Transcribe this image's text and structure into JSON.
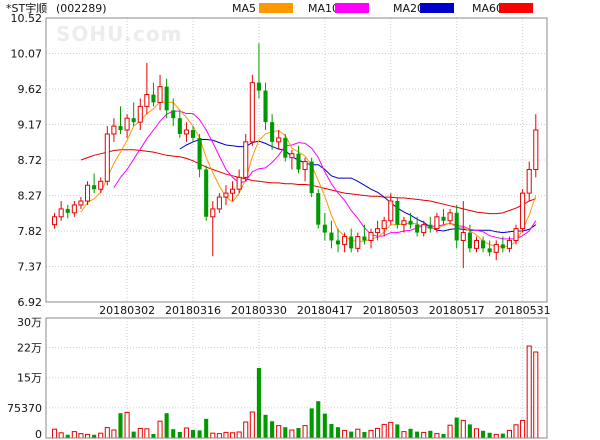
{
  "chart_data": {
    "type": "candlestick",
    "title": "*ST宇顺",
    "code": "(002289)",
    "watermark": "SOHU.com",
    "legend": [
      {
        "label": "MA5",
        "color": "#ff9900"
      },
      {
        "label": "MA10",
        "color": "#ff00ff"
      },
      {
        "label": "MA20",
        "color": "#0000cc"
      },
      {
        "label": "MA60",
        "color": "#ff0000"
      }
    ],
    "price_axis": {
      "ticks": [
        "10.52",
        "10.07",
        "9.62",
        "9.17",
        "8.72",
        "8.27",
        "7.82",
        "7.37",
        "6.92"
      ],
      "min": 6.92,
      "max": 10.52
    },
    "date_labels": [
      "20180302",
      "20180316",
      "20180330",
      "20180417",
      "20180503",
      "20180517",
      "20180531"
    ],
    "date_label_index": [
      11,
      21,
      31,
      41,
      51,
      61,
      71
    ],
    "volume_axis": {
      "ticks": [
        "30万",
        "22万",
        "15万",
        "75370",
        "0"
      ],
      "tick_values": [
        300000,
        226110,
        150740,
        75370,
        0
      ],
      "max": 300000
    },
    "candles": [
      {
        "o": 7.9,
        "h": 8.05,
        "l": 7.85,
        "c": 8.0,
        "up": true
      },
      {
        "o": 8.0,
        "h": 8.2,
        "l": 7.95,
        "c": 8.1,
        "up": true
      },
      {
        "o": 8.1,
        "h": 8.15,
        "l": 7.98,
        "c": 8.05,
        "up": false
      },
      {
        "o": 8.05,
        "h": 8.2,
        "l": 8.0,
        "c": 8.15,
        "up": true
      },
      {
        "o": 8.15,
        "h": 8.25,
        "l": 8.1,
        "c": 8.2,
        "up": true
      },
      {
        "o": 8.2,
        "h": 8.45,
        "l": 8.15,
        "c": 8.4,
        "up": true
      },
      {
        "o": 8.4,
        "h": 8.55,
        "l": 8.3,
        "c": 8.35,
        "up": false
      },
      {
        "o": 8.35,
        "h": 8.5,
        "l": 8.3,
        "c": 8.45,
        "up": true
      },
      {
        "o": 8.45,
        "h": 9.15,
        "l": 8.4,
        "c": 9.05,
        "up": true
      },
      {
        "o": 9.05,
        "h": 9.25,
        "l": 8.95,
        "c": 9.15,
        "up": true
      },
      {
        "o": 9.15,
        "h": 9.4,
        "l": 9.05,
        "c": 9.1,
        "up": false
      },
      {
        "o": 9.1,
        "h": 9.3,
        "l": 9.0,
        "c": 9.25,
        "up": true
      },
      {
        "o": 9.25,
        "h": 9.45,
        "l": 9.15,
        "c": 9.2,
        "up": false
      },
      {
        "o": 9.2,
        "h": 9.5,
        "l": 9.1,
        "c": 9.4,
        "up": true
      },
      {
        "o": 9.4,
        "h": 9.95,
        "l": 9.3,
        "c": 9.55,
        "up": true
      },
      {
        "o": 9.55,
        "h": 9.7,
        "l": 9.4,
        "c": 9.45,
        "up": false
      },
      {
        "o": 9.45,
        "h": 9.8,
        "l": 9.35,
        "c": 9.65,
        "up": true
      },
      {
        "o": 9.65,
        "h": 9.75,
        "l": 9.25,
        "c": 9.35,
        "up": false
      },
      {
        "o": 9.35,
        "h": 9.5,
        "l": 9.15,
        "c": 9.25,
        "up": false
      },
      {
        "o": 9.25,
        "h": 9.35,
        "l": 9.0,
        "c": 9.05,
        "up": false
      },
      {
        "o": 9.05,
        "h": 9.2,
        "l": 8.95,
        "c": 9.1,
        "up": true
      },
      {
        "o": 9.1,
        "h": 9.15,
        "l": 8.95,
        "c": 9.0,
        "up": false
      },
      {
        "o": 9.0,
        "h": 9.05,
        "l": 8.5,
        "c": 8.6,
        "up": false
      },
      {
        "o": 8.6,
        "h": 8.65,
        "l": 7.95,
        "c": 8.0,
        "up": false
      },
      {
        "o": 8.0,
        "h": 8.2,
        "l": 7.5,
        "c": 8.1,
        "up": true
      },
      {
        "o": 8.1,
        "h": 8.3,
        "l": 8.05,
        "c": 8.25,
        "up": true
      },
      {
        "o": 8.25,
        "h": 8.4,
        "l": 8.15,
        "c": 8.3,
        "up": true
      },
      {
        "o": 8.3,
        "h": 8.45,
        "l": 8.2,
        "c": 8.35,
        "up": true
      },
      {
        "o": 8.35,
        "h": 8.6,
        "l": 8.3,
        "c": 8.5,
        "up": true
      },
      {
        "o": 8.5,
        "h": 9.05,
        "l": 8.45,
        "c": 8.95,
        "up": true
      },
      {
        "o": 8.95,
        "h": 9.8,
        "l": 8.9,
        "c": 9.7,
        "up": true
      },
      {
        "o": 9.7,
        "h": 10.2,
        "l": 9.5,
        "c": 9.6,
        "up": false
      },
      {
        "o": 9.6,
        "h": 9.7,
        "l": 9.1,
        "c": 9.2,
        "up": false
      },
      {
        "o": 9.2,
        "h": 9.3,
        "l": 8.85,
        "c": 8.95,
        "up": false
      },
      {
        "o": 8.95,
        "h": 9.1,
        "l": 8.85,
        "c": 9.0,
        "up": true
      },
      {
        "o": 9.0,
        "h": 9.05,
        "l": 8.7,
        "c": 8.75,
        "up": false
      },
      {
        "o": 8.75,
        "h": 8.85,
        "l": 8.6,
        "c": 8.8,
        "up": true
      },
      {
        "o": 8.8,
        "h": 8.9,
        "l": 8.55,
        "c": 8.6,
        "up": false
      },
      {
        "o": 8.6,
        "h": 8.75,
        "l": 8.45,
        "c": 8.7,
        "up": true
      },
      {
        "o": 8.7,
        "h": 8.75,
        "l": 8.25,
        "c": 8.3,
        "up": false
      },
      {
        "o": 8.3,
        "h": 8.35,
        "l": 7.85,
        "c": 7.9,
        "up": false
      },
      {
        "o": 7.9,
        "h": 8.05,
        "l": 7.7,
        "c": 7.8,
        "up": false
      },
      {
        "o": 7.8,
        "h": 7.95,
        "l": 7.6,
        "c": 7.7,
        "up": false
      },
      {
        "o": 7.7,
        "h": 7.85,
        "l": 7.55,
        "c": 7.65,
        "up": false
      },
      {
        "o": 7.65,
        "h": 7.8,
        "l": 7.55,
        "c": 7.75,
        "up": true
      },
      {
        "o": 7.75,
        "h": 7.85,
        "l": 7.55,
        "c": 7.6,
        "up": false
      },
      {
        "o": 7.6,
        "h": 7.8,
        "l": 7.55,
        "c": 7.75,
        "up": true
      },
      {
        "o": 7.75,
        "h": 7.9,
        "l": 7.65,
        "c": 7.7,
        "up": false
      },
      {
        "o": 7.7,
        "h": 7.85,
        "l": 7.6,
        "c": 7.8,
        "up": true
      },
      {
        "o": 7.8,
        "h": 7.95,
        "l": 7.7,
        "c": 7.85,
        "up": true
      },
      {
        "o": 7.85,
        "h": 8.0,
        "l": 7.75,
        "c": 7.95,
        "up": true
      },
      {
        "o": 7.95,
        "h": 8.3,
        "l": 7.9,
        "c": 8.2,
        "up": true
      },
      {
        "o": 8.2,
        "h": 8.25,
        "l": 7.85,
        "c": 7.9,
        "up": false
      },
      {
        "o": 7.9,
        "h": 8.0,
        "l": 7.8,
        "c": 7.95,
        "up": true
      },
      {
        "o": 7.95,
        "h": 8.05,
        "l": 7.85,
        "c": 7.9,
        "up": false
      },
      {
        "o": 7.9,
        "h": 8.0,
        "l": 7.75,
        "c": 7.8,
        "up": false
      },
      {
        "o": 7.8,
        "h": 7.95,
        "l": 7.75,
        "c": 7.9,
        "up": true
      },
      {
        "o": 7.9,
        "h": 8.0,
        "l": 7.8,
        "c": 7.85,
        "up": false
      },
      {
        "o": 7.85,
        "h": 8.05,
        "l": 7.8,
        "c": 8.0,
        "up": true
      },
      {
        "o": 8.0,
        "h": 8.1,
        "l": 7.9,
        "c": 7.95,
        "up": false
      },
      {
        "o": 7.95,
        "h": 8.1,
        "l": 7.9,
        "c": 8.05,
        "up": true
      },
      {
        "o": 8.05,
        "h": 8.15,
        "l": 7.6,
        "c": 7.7,
        "up": false
      },
      {
        "o": 7.7,
        "h": 8.2,
        "l": 7.35,
        "c": 7.8,
        "up": true
      },
      {
        "o": 7.8,
        "h": 7.9,
        "l": 7.55,
        "c": 7.6,
        "up": false
      },
      {
        "o": 7.6,
        "h": 7.75,
        "l": 7.55,
        "c": 7.7,
        "up": true
      },
      {
        "o": 7.7,
        "h": 7.75,
        "l": 7.55,
        "c": 7.6,
        "up": false
      },
      {
        "o": 7.6,
        "h": 7.7,
        "l": 7.5,
        "c": 7.55,
        "up": false
      },
      {
        "o": 7.55,
        "h": 7.7,
        "l": 7.45,
        "c": 7.65,
        "up": true
      },
      {
        "o": 7.65,
        "h": 7.75,
        "l": 7.55,
        "c": 7.6,
        "up": false
      },
      {
        "o": 7.6,
        "h": 7.75,
        "l": 7.55,
        "c": 7.7,
        "up": true
      },
      {
        "o": 7.7,
        "h": 7.9,
        "l": 7.65,
        "c": 7.85,
        "up": true
      },
      {
        "o": 7.85,
        "h": 8.35,
        "l": 7.8,
        "c": 8.3,
        "up": true
      },
      {
        "o": 8.3,
        "h": 8.7,
        "l": 8.2,
        "c": 8.6,
        "up": true
      },
      {
        "o": 8.6,
        "h": 9.3,
        "l": 8.5,
        "c": 9.1,
        "up": true
      }
    ],
    "ma5": [
      null,
      null,
      null,
      null,
      8.06,
      8.18,
      8.23,
      8.31,
      8.49,
      8.68,
      8.82,
      8.97,
      9.15,
      9.22,
      9.31,
      9.37,
      9.46,
      9.45,
      9.45,
      9.35,
      9.26,
      9.15,
      9.0,
      8.75,
      8.56,
      8.39,
      8.25,
      8.19,
      8.3,
      8.47,
      8.76,
      8.97,
      9.05,
      9.08,
      9.09,
      9.03,
      8.87,
      8.82,
      8.77,
      8.65,
      8.46,
      8.26,
      8.02,
      7.83,
      7.76,
      7.7,
      7.69,
      7.69,
      7.72,
      7.74,
      7.81,
      7.9,
      7.9,
      7.91,
      7.92,
      7.91,
      7.87,
      7.86,
      7.85,
      7.89,
      7.92,
      7.87,
      7.86,
      7.82,
      7.77,
      7.69,
      7.65,
      7.62,
      7.62,
      7.63,
      7.69,
      7.84,
      8.02,
      8.27
    ],
    "ma10": [
      null,
      null,
      null,
      null,
      null,
      null,
      null,
      null,
      null,
      8.37,
      8.5,
      8.6,
      8.73,
      8.86,
      8.99,
      9.1,
      9.21,
      9.3,
      9.34,
      9.34,
      9.31,
      9.31,
      9.23,
      9.1,
      8.94,
      8.77,
      8.6,
      8.5,
      8.43,
      8.45,
      8.57,
      8.61,
      8.62,
      8.69,
      8.78,
      8.9,
      8.91,
      8.94,
      8.93,
      8.87,
      8.75,
      8.57,
      8.42,
      8.3,
      8.21,
      8.08,
      7.98,
      7.86,
      7.78,
      7.75,
      7.76,
      7.8,
      7.8,
      7.82,
      7.83,
      7.86,
      7.89,
      7.88,
      7.88,
      7.9,
      7.92,
      7.89,
      7.88,
      7.84,
      7.83,
      7.81,
      7.76,
      7.74,
      7.72,
      7.72,
      7.72,
      7.76,
      7.82,
      7.95
    ],
    "ma20": [
      null,
      null,
      null,
      null,
      null,
      null,
      null,
      null,
      null,
      null,
      null,
      null,
      null,
      null,
      null,
      null,
      null,
      null,
      null,
      8.86,
      8.91,
      8.95,
      8.98,
      8.98,
      8.97,
      8.94,
      8.91,
      8.9,
      8.89,
      8.89,
      8.94,
      8.96,
      8.93,
      8.89,
      8.86,
      8.84,
      8.76,
      8.72,
      8.68,
      8.66,
      8.66,
      8.6,
      8.52,
      8.49,
      8.49,
      8.49,
      8.45,
      8.4,
      8.35,
      8.31,
      8.25,
      8.18,
      8.11,
      8.06,
      8.02,
      7.97,
      7.93,
      7.87,
      7.83,
      7.82,
      7.84,
      7.85,
      7.84,
      7.83,
      7.83,
      7.83,
      7.83,
      7.81,
      7.8,
      7.81,
      7.82,
      7.82,
      7.84,
      7.9
    ],
    "ma60": [
      null,
      null,
      null,
      null,
      8.72,
      8.75,
      8.78,
      8.8,
      8.82,
      8.84,
      8.85,
      8.85,
      8.85,
      8.84,
      8.83,
      8.82,
      8.8,
      8.78,
      8.77,
      8.76,
      8.74,
      8.71,
      8.67,
      8.63,
      8.6,
      8.57,
      8.54,
      8.52,
      8.5,
      8.48,
      8.46,
      8.45,
      8.44,
      8.43,
      8.43,
      8.42,
      8.42,
      8.41,
      8.41,
      8.4,
      8.38,
      8.36,
      8.34,
      8.32,
      8.3,
      8.29,
      8.28,
      8.27,
      8.26,
      8.26,
      8.25,
      8.25,
      8.24,
      8.24,
      8.23,
      8.22,
      8.21,
      8.2,
      8.18,
      8.16,
      8.14,
      8.12,
      8.1,
      8.08,
      8.06,
      8.05,
      8.04,
      8.04,
      8.05,
      8.08,
      8.11,
      8.15,
      8.2,
      8.23
    ],
    "volumes": [
      22000,
      13000,
      8000,
      16000,
      11000,
      9000,
      8000,
      12000,
      26000,
      20000,
      62000,
      64000,
      16000,
      24000,
      23000,
      10000,
      42000,
      62000,
      22000,
      15000,
      25000,
      20000,
      19000,
      48000,
      12000,
      11000,
      14000,
      13000,
      15000,
      40000,
      65000,
      175000,
      58000,
      42000,
      31000,
      27000,
      20000,
      25000,
      31000,
      74000,
      92000,
      61000,
      35000,
      27000,
      19000,
      16000,
      22000,
      15000,
      19000,
      24000,
      34000,
      39000,
      34000,
      16000,
      23000,
      16000,
      14000,
      18000,
      11000,
      10000,
      32000,
      51000,
      44000,
      34000,
      23000,
      18000,
      13000,
      9000,
      11000,
      19000,
      33000,
      44000,
      230000,
      215000
    ]
  }
}
